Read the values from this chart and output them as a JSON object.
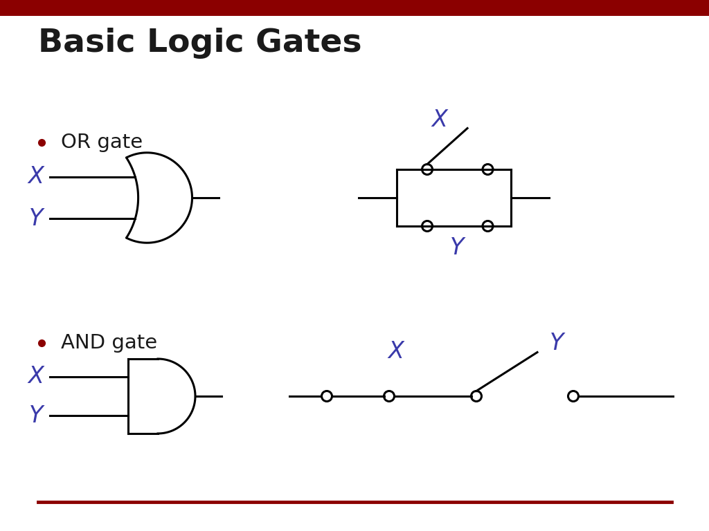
{
  "title": "Basic Logic Gates",
  "title_color": "#1a1a1a",
  "title_fontsize": 34,
  "title_fontweight": "bold",
  "bg_color": "#ffffff",
  "top_bar_color": "#8B0000",
  "bottom_line_color": "#8B0000",
  "label_color": "#3a3aaa",
  "bullet_color": "#8B0000",
  "gate_color": "#000000",
  "or_label": "OR gate",
  "and_label": "AND gate"
}
